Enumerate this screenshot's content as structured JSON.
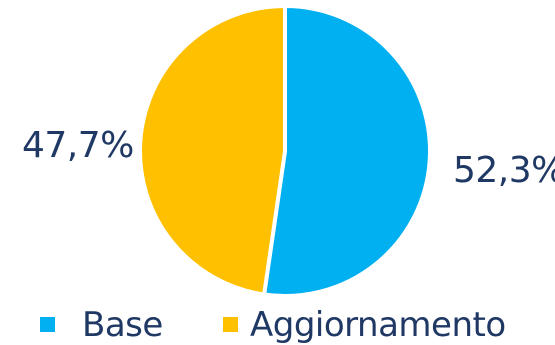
{
  "chart_data": {
    "type": "pie",
    "title": "",
    "start_angle_deg": 0,
    "direction": "clockwise",
    "legend_position": "bottom",
    "series": [
      {
        "name": "Base",
        "value": 52.3,
        "label": "52,3%",
        "color": "#00b0f0"
      },
      {
        "name": "Aggiornamento",
        "value": 47.7,
        "label": "47,7%",
        "color": "#ffc000"
      }
    ]
  }
}
